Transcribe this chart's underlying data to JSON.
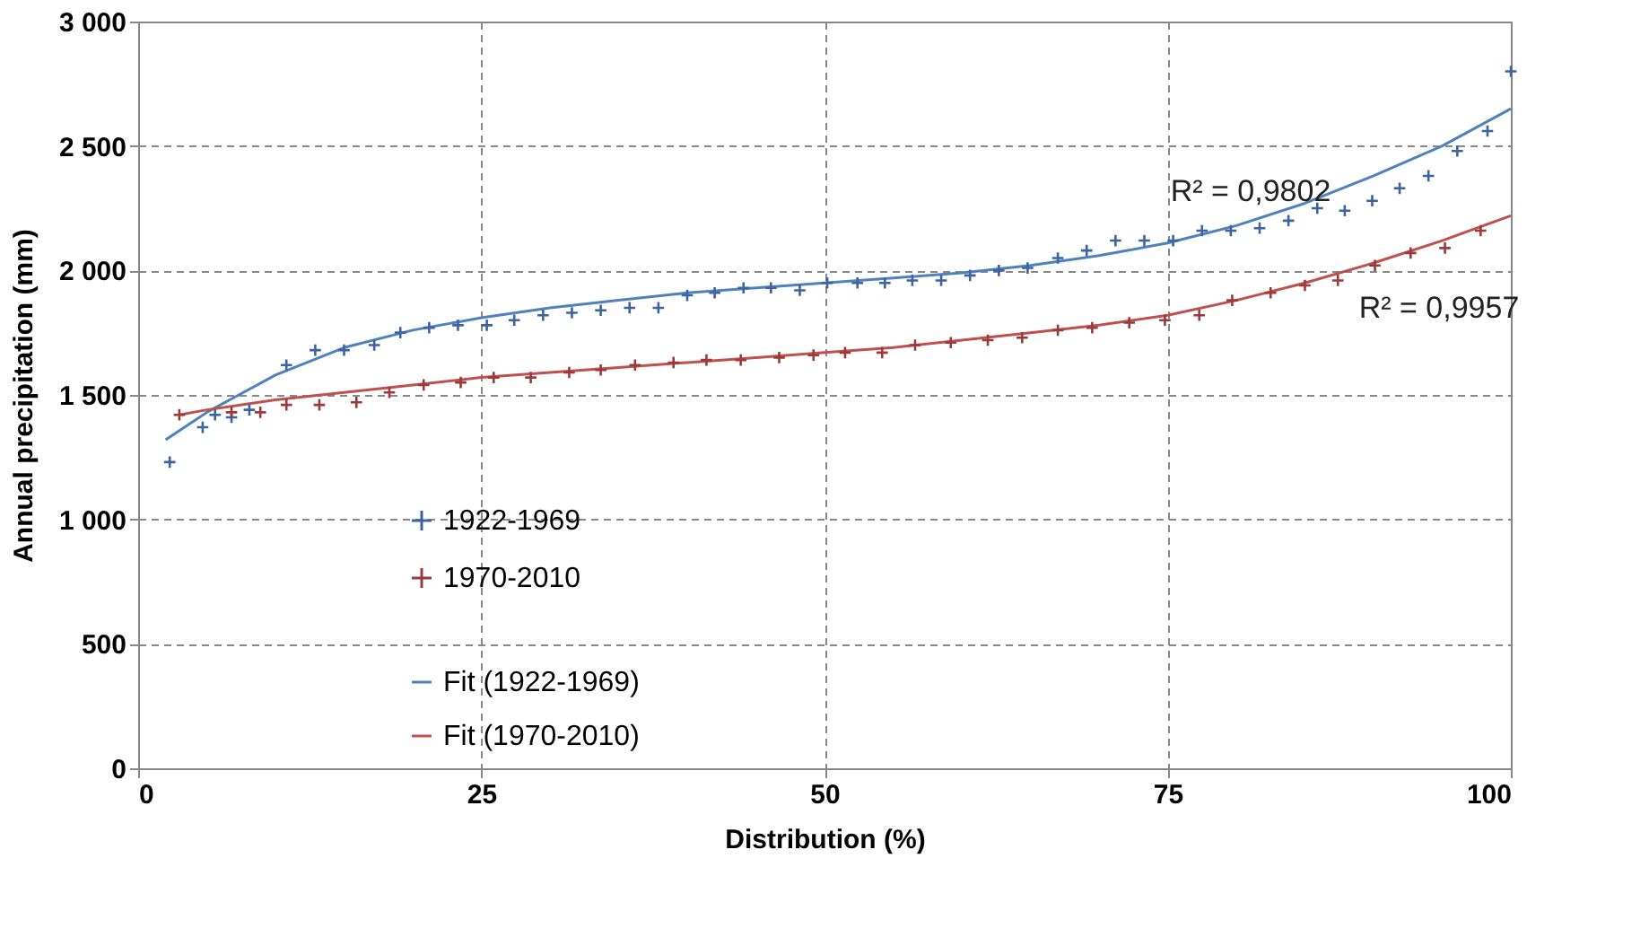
{
  "chart_data": {
    "type": "scatter",
    "xlabel": "Distribution (%)",
    "ylabel": "Annual precipitation (mm)",
    "xlim": [
      0,
      100
    ],
    "xticks": [
      0,
      25,
      50,
      75,
      100
    ],
    "ylim": [
      0,
      3000
    ],
    "yticks": [
      0,
      500,
      {
        "value": 1000,
        "label": "1 000"
      },
      {
        "value": 1500,
        "label": "1 500"
      },
      {
        "value": 2000,
        "label": "2 000"
      },
      {
        "value": 2500,
        "label": "2 500"
      },
      {
        "value": 3000,
        "label": "3 000"
      }
    ],
    "grid": true,
    "legend": "bottom",
    "series": [
      {
        "name": "1922-1969",
        "marker": "cross",
        "color": "#3b64a0",
        "x": [
          2.3,
          4.7,
          5.6,
          6.8,
          8.1,
          10.8,
          12.9,
          15,
          17.2,
          19.1,
          21.2,
          23.3,
          25.4,
          27.4,
          29.5,
          31.6,
          33.7,
          35.8,
          37.9,
          40,
          42,
          44.1,
          46.1,
          48.2,
          50.2,
          52.4,
          54.4,
          56.4,
          58.5,
          60.6,
          62.7,
          64.8,
          67,
          69.1,
          71.2,
          73.3,
          75.4,
          77.5,
          79.6,
          81.7,
          83.8,
          85.9,
          87.9,
          89.9,
          91.9,
          94,
          96.1,
          98.3,
          100
        ],
        "values": [
          1230,
          1370,
          1420,
          1410,
          1440,
          1620,
          1680,
          1680,
          1700,
          1750,
          1770,
          1780,
          1780,
          1800,
          1820,
          1830,
          1840,
          1850,
          1850,
          1900,
          1910,
          1930,
          1930,
          1920,
          1950,
          1950,
          1950,
          1960,
          1960,
          1980,
          2000,
          2010,
          2050,
          2080,
          2120,
          2120,
          2120,
          2160,
          2160,
          2170,
          2200,
          2250,
          2240,
          2280,
          2330,
          2380,
          2480,
          2560,
          2800
        ]
      },
      {
        "name": "1970-2010",
        "marker": "cross",
        "color": "#9a3a3a",
        "x": [
          3,
          6.8,
          8.9,
          10.8,
          13.2,
          15.9,
          18.3,
          20.8,
          23.5,
          25.9,
          28.6,
          31.4,
          33.7,
          36.2,
          39,
          41.4,
          43.9,
          46.7,
          49.2,
          51.5,
          54.2,
          56.6,
          59.2,
          61.9,
          64.4,
          67,
          69.5,
          72.2,
          74.8,
          77.3,
          79.7,
          82.5,
          85,
          87.4,
          90.1,
          92.7,
          95.2,
          97.8
        ],
        "values": [
          1420,
          1430,
          1430,
          1460,
          1460,
          1470,
          1510,
          1540,
          1550,
          1570,
          1570,
          1590,
          1600,
          1620,
          1630,
          1640,
          1640,
          1650,
          1660,
          1670,
          1670,
          1700,
          1710,
          1720,
          1730,
          1760,
          1770,
          1790,
          1800,
          1820,
          1880,
          1910,
          1940,
          1960,
          2020,
          2070,
          2090,
          2160
        ]
      },
      {
        "name": "Fit (1922-1969)",
        "type": "line",
        "marker": "none",
        "color": "#4f81bd",
        "x": [
          2,
          5,
          10,
          15,
          20,
          25,
          30,
          35,
          40,
          45,
          50,
          55,
          60,
          65,
          70,
          75,
          80,
          85,
          90,
          95,
          100
        ],
        "values": [
          1320,
          1430,
          1580,
          1690,
          1760,
          1810,
          1850,
          1880,
          1910,
          1930,
          1950,
          1970,
          1990,
          2020,
          2060,
          2110,
          2180,
          2270,
          2380,
          2500,
          2650
        ]
      },
      {
        "name": "Fit (1970-2010)",
        "type": "line",
        "marker": "none",
        "color": "#c0504d",
        "x": [
          3,
          5,
          10,
          15,
          20,
          25,
          30,
          35,
          40,
          45,
          50,
          55,
          60,
          65,
          70,
          75,
          80,
          85,
          90,
          95,
          100
        ],
        "values": [
          1420,
          1440,
          1480,
          1510,
          1540,
          1570,
          1590,
          1610,
          1630,
          1650,
          1670,
          1690,
          1720,
          1750,
          1780,
          1820,
          1880,
          1950,
          2030,
          2120,
          2220
        ]
      }
    ],
    "annotations": [
      "R² = 0,9802",
      "R² = 0,9957"
    ]
  }
}
